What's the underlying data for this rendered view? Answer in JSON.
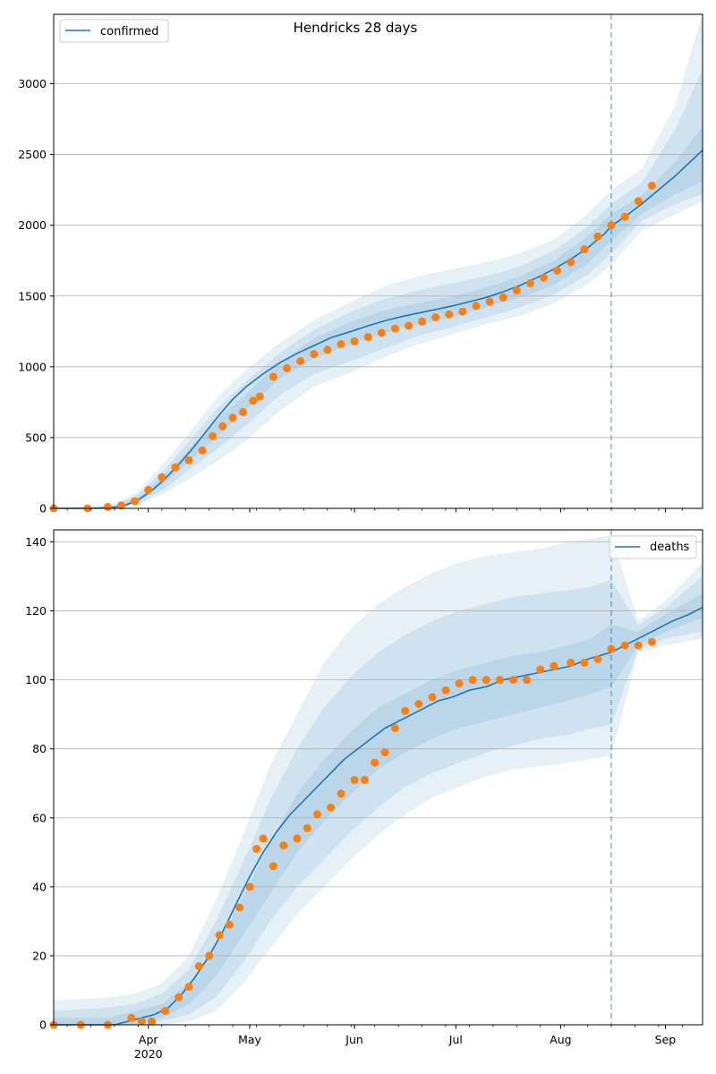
{
  "chart_data": [
    {
      "type": "line",
      "title": "Hendricks 28 days",
      "legend": {
        "entries": [
          "confirmed"
        ],
        "placement": "top-left"
      },
      "grid": "horizontal",
      "x_type": "date",
      "xlim": [
        "2020-03-04",
        "2020-09-12"
      ],
      "ylim": [
        0,
        3490
      ],
      "yticks": [
        0,
        500,
        1000,
        1500,
        2000,
        2500,
        3000
      ],
      "forecast_start": "2020-08-16",
      "series": [
        {
          "name": "confirmed",
          "kind": "model-median",
          "color": "#1f77b4",
          "x": [
            "2020-03-04",
            "2020-03-15",
            "2020-03-21",
            "2020-03-25",
            "2020-03-29",
            "2020-04-02",
            "2020-04-06",
            "2020-04-10",
            "2020-04-14",
            "2020-04-18",
            "2020-04-22",
            "2020-04-26",
            "2020-04-30",
            "2020-05-05",
            "2020-05-10",
            "2020-05-15",
            "2020-05-20",
            "2020-05-25",
            "2020-05-31",
            "2020-06-05",
            "2020-06-10",
            "2020-06-15",
            "2020-06-20",
            "2020-06-25",
            "2020-06-30",
            "2020-07-05",
            "2020-07-10",
            "2020-07-15",
            "2020-07-20",
            "2020-07-25",
            "2020-07-30",
            "2020-08-04",
            "2020-08-09",
            "2020-08-14",
            "2020-08-16",
            "2020-08-20",
            "2020-08-25",
            "2020-08-30",
            "2020-09-04",
            "2020-09-08",
            "2020-09-12"
          ],
          "y": [
            0,
            0,
            5,
            20,
            60,
            125,
            210,
            310,
            420,
            540,
            660,
            770,
            860,
            950,
            1030,
            1095,
            1150,
            1205,
            1250,
            1290,
            1325,
            1355,
            1380,
            1405,
            1430,
            1460,
            1490,
            1530,
            1575,
            1630,
            1690,
            1760,
            1840,
            1940,
            1995,
            2060,
            2150,
            2250,
            2350,
            2440,
            2530
          ]
        },
        {
          "name": "",
          "kind": "observed",
          "color": "#ff7f0e",
          "x": [
            "2020-03-04",
            "2020-03-14",
            "2020-03-20",
            "2020-03-24",
            "2020-03-28",
            "2020-04-01",
            "2020-04-05",
            "2020-04-09",
            "2020-04-13",
            "2020-04-17",
            "2020-04-20",
            "2020-04-23",
            "2020-04-26",
            "2020-04-29",
            "2020-05-02",
            "2020-05-04",
            "2020-05-08",
            "2020-05-12",
            "2020-05-16",
            "2020-05-20",
            "2020-05-24",
            "2020-05-28",
            "2020-06-01",
            "2020-06-05",
            "2020-06-09",
            "2020-06-13",
            "2020-06-17",
            "2020-06-21",
            "2020-06-25",
            "2020-06-29",
            "2020-07-03",
            "2020-07-07",
            "2020-07-11",
            "2020-07-15",
            "2020-07-19",
            "2020-07-23",
            "2020-07-27",
            "2020-07-31",
            "2020-08-04",
            "2020-08-08",
            "2020-08-12",
            "2020-08-16",
            "2020-08-20",
            "2020-08-24",
            "2020-08-28"
          ],
          "y": [
            0,
            0,
            10,
            20,
            50,
            130,
            220,
            290,
            340,
            410,
            510,
            580,
            640,
            680,
            760,
            790,
            930,
            990,
            1040,
            1090,
            1120,
            1160,
            1180,
            1210,
            1240,
            1270,
            1290,
            1320,
            1350,
            1370,
            1390,
            1430,
            1460,
            1490,
            1540,
            1590,
            1630,
            1680,
            1740,
            1830,
            1920,
            2000,
            2060,
            2170,
            2280
          ]
        }
      ],
      "bands": [
        {
          "x": [
            "2020-03-04",
            "2020-03-21",
            "2020-03-29",
            "2020-04-06",
            "2020-04-14",
            "2020-04-22",
            "2020-04-30",
            "2020-05-10",
            "2020-05-20",
            "2020-05-31",
            "2020-06-10",
            "2020-06-20",
            "2020-06-30",
            "2020-07-10",
            "2020-07-20",
            "2020-07-30",
            "2020-08-09",
            "2020-08-16",
            "2020-08-25",
            "2020-09-04",
            "2020-09-12"
          ],
          "lo": [
            0,
            0,
            20,
            110,
            220,
            340,
            480,
            690,
            860,
            960,
            1070,
            1160,
            1230,
            1300,
            1360,
            1450,
            1580,
            1720,
            1960,
            2080,
            2170
          ],
          "hi": [
            0,
            20,
            120,
            330,
            560,
            800,
            980,
            1170,
            1330,
            1460,
            1570,
            1640,
            1690,
            1740,
            1800,
            1900,
            2080,
            2250,
            2400,
            2850,
            3500
          ]
        },
        {
          "x": [
            "2020-03-04",
            "2020-03-21",
            "2020-03-29",
            "2020-04-06",
            "2020-04-14",
            "2020-04-22",
            "2020-04-30",
            "2020-05-10",
            "2020-05-20",
            "2020-05-31",
            "2020-06-10",
            "2020-06-20",
            "2020-06-30",
            "2020-07-10",
            "2020-07-20",
            "2020-07-30",
            "2020-08-09",
            "2020-08-16",
            "2020-08-25",
            "2020-09-04",
            "2020-09-12"
          ],
          "lo": [
            0,
            0,
            30,
            140,
            290,
            430,
            590,
            800,
            950,
            1040,
            1130,
            1220,
            1280,
            1350,
            1420,
            1510,
            1650,
            1800,
            2030,
            2150,
            2220
          ],
          "hi": [
            0,
            15,
            100,
            280,
            500,
            720,
            900,
            1100,
            1260,
            1390,
            1480,
            1540,
            1590,
            1640,
            1710,
            1820,
            1990,
            2150,
            2300,
            2680,
            3100
          ]
        },
        {
          "x": [
            "2020-03-04",
            "2020-03-21",
            "2020-03-29",
            "2020-04-06",
            "2020-04-14",
            "2020-04-22",
            "2020-04-30",
            "2020-05-10",
            "2020-05-20",
            "2020-05-31",
            "2020-06-10",
            "2020-06-20",
            "2020-06-30",
            "2020-07-10",
            "2020-07-20",
            "2020-07-30",
            "2020-08-09",
            "2020-08-16",
            "2020-08-25",
            "2020-09-04",
            "2020-09-12"
          ],
          "lo": [
            0,
            2,
            45,
            180,
            350,
            520,
            700,
            920,
            1060,
            1160,
            1240,
            1300,
            1350,
            1420,
            1490,
            1580,
            1730,
            1890,
            2080,
            2220,
            2310
          ],
          "hi": [
            0,
            8,
            80,
            240,
            440,
            640,
            810,
            1030,
            1200,
            1320,
            1400,
            1450,
            1500,
            1560,
            1640,
            1750,
            1920,
            2080,
            2210,
            2450,
            2700
          ]
        }
      ]
    },
    {
      "type": "line",
      "title": "",
      "legend": {
        "entries": [
          "deaths"
        ],
        "placement": "top-right"
      },
      "grid": "horizontal",
      "x_type": "date",
      "xlim": [
        "2020-03-04",
        "2020-09-12"
      ],
      "ylim": [
        0,
        143.5
      ],
      "yticks": [
        0,
        20,
        40,
        60,
        80,
        100,
        120,
        140
      ],
      "xticks": [
        {
          "date": "2020-04-01",
          "label": "Apr",
          "sub": "2020"
        },
        {
          "date": "2020-05-01",
          "label": "May"
        },
        {
          "date": "2020-06-01",
          "label": "Jun"
        },
        {
          "date": "2020-07-01",
          "label": "Jul"
        },
        {
          "date": "2020-08-01",
          "label": "Aug"
        },
        {
          "date": "2020-09-01",
          "label": "Sep"
        }
      ],
      "forecast_start": "2020-08-16",
      "series": [
        {
          "name": "deaths",
          "kind": "model-median",
          "color": "#1f77b4",
          "x": [
            "2020-03-04",
            "2020-03-22",
            "2020-03-26",
            "2020-03-30",
            "2020-04-03",
            "2020-04-07",
            "2020-04-11",
            "2020-04-15",
            "2020-04-19",
            "2020-04-23",
            "2020-04-27",
            "2020-05-01",
            "2020-05-05",
            "2020-05-09",
            "2020-05-13",
            "2020-05-17",
            "2020-05-21",
            "2020-05-25",
            "2020-05-29",
            "2020-06-02",
            "2020-06-06",
            "2020-06-10",
            "2020-06-14",
            "2020-06-18",
            "2020-06-22",
            "2020-06-26",
            "2020-06-30",
            "2020-07-05",
            "2020-07-10",
            "2020-07-15",
            "2020-07-20",
            "2020-07-25",
            "2020-07-30",
            "2020-08-04",
            "2020-08-09",
            "2020-08-16",
            "2020-08-22",
            "2020-08-28",
            "2020-09-03",
            "2020-09-08",
            "2020-09-12"
          ],
          "y": [
            0,
            0,
            1,
            2,
            3,
            5,
            9,
            14,
            20,
            27,
            35,
            43,
            50,
            56,
            61,
            65,
            69,
            73,
            77,
            80,
            83,
            86,
            88,
            90,
            92,
            94,
            95,
            97,
            98,
            100,
            101,
            102,
            103,
            104,
            106,
            108,
            111,
            114,
            117,
            119,
            121
          ]
        },
        {
          "name": "",
          "kind": "observed",
          "color": "#ff7f0e",
          "x": [
            "2020-03-04",
            "2020-03-12",
            "2020-03-20",
            "2020-03-27",
            "2020-03-30",
            "2020-04-02",
            "2020-04-06",
            "2020-04-10",
            "2020-04-13",
            "2020-04-16",
            "2020-04-19",
            "2020-04-22",
            "2020-04-25",
            "2020-04-28",
            "2020-05-01",
            "2020-05-03",
            "2020-05-05",
            "2020-05-08",
            "2020-05-11",
            "2020-05-15",
            "2020-05-18",
            "2020-05-21",
            "2020-05-25",
            "2020-05-28",
            "2020-06-01",
            "2020-06-04",
            "2020-06-07",
            "2020-06-10",
            "2020-06-13",
            "2020-06-16",
            "2020-06-20",
            "2020-06-24",
            "2020-06-28",
            "2020-07-02",
            "2020-07-06",
            "2020-07-10",
            "2020-07-14",
            "2020-07-18",
            "2020-07-22",
            "2020-07-26",
            "2020-07-30",
            "2020-08-04",
            "2020-08-08",
            "2020-08-12",
            "2020-08-16",
            "2020-08-20",
            "2020-08-24",
            "2020-08-28"
          ],
          "y": [
            0,
            0,
            0,
            2,
            1,
            1,
            4,
            8,
            11,
            17,
            20,
            26,
            29,
            34,
            40,
            51,
            54,
            46,
            52,
            54,
            57,
            61,
            63,
            67,
            71,
            71,
            76,
            79,
            86,
            91,
            93,
            95,
            97,
            99,
            100,
            100,
            100,
            100,
            100,
            103,
            104,
            105,
            105,
            106,
            109,
            110,
            110,
            111
          ]
        }
      ],
      "bands": [
        {
          "x": [
            "2020-03-04",
            "2020-03-20",
            "2020-03-28",
            "2020-04-05",
            "2020-04-13",
            "2020-04-21",
            "2020-04-29",
            "2020-05-07",
            "2020-05-15",
            "2020-05-23",
            "2020-05-31",
            "2020-06-08",
            "2020-06-16",
            "2020-06-24",
            "2020-07-02",
            "2020-07-10",
            "2020-07-18",
            "2020-07-26",
            "2020-08-03",
            "2020-08-10",
            "2020-08-16",
            "2020-08-24",
            "2020-09-01",
            "2020-09-12"
          ],
          "lo": [
            0,
            0,
            0,
            0,
            1,
            4,
            12,
            22,
            32,
            40,
            48,
            55,
            61,
            66,
            69,
            72,
            74,
            75,
            76,
            77,
            78,
            108,
            110,
            112
          ],
          "hi": [
            7,
            8,
            9,
            12,
            20,
            36,
            55,
            75,
            90,
            105,
            115,
            122,
            127,
            131,
            134,
            136,
            137,
            138,
            140,
            141,
            142,
            117,
            123,
            134
          ]
        },
        {
          "x": [
            "2020-03-04",
            "2020-03-20",
            "2020-03-28",
            "2020-04-05",
            "2020-04-13",
            "2020-04-21",
            "2020-04-29",
            "2020-05-07",
            "2020-05-15",
            "2020-05-23",
            "2020-05-31",
            "2020-06-08",
            "2020-06-16",
            "2020-06-24",
            "2020-07-02",
            "2020-07-10",
            "2020-07-18",
            "2020-07-26",
            "2020-08-03",
            "2020-08-10",
            "2020-08-16",
            "2020-08-24",
            "2020-09-01",
            "2020-09-12"
          ],
          "lo": [
            0,
            0,
            0,
            1,
            3,
            8,
            18,
            30,
            40,
            48,
            56,
            63,
            69,
            73,
            76,
            79,
            81,
            83,
            84,
            86,
            87,
            109,
            112,
            114
          ],
          "hi": [
            4,
            5,
            6,
            9,
            16,
            30,
            47,
            65,
            80,
            92,
            101,
            108,
            113,
            117,
            120,
            122,
            124,
            125,
            126,
            127,
            129,
            116,
            121,
            130
          ]
        },
        {
          "x": [
            "2020-03-04",
            "2020-03-20",
            "2020-03-28",
            "2020-04-05",
            "2020-04-13",
            "2020-04-21",
            "2020-04-29",
            "2020-05-07",
            "2020-05-15",
            "2020-05-23",
            "2020-05-31",
            "2020-06-08",
            "2020-06-16",
            "2020-06-24",
            "2020-07-02",
            "2020-07-10",
            "2020-07-18",
            "2020-07-26",
            "2020-08-03",
            "2020-08-10",
            "2020-08-16",
            "2020-08-24",
            "2020-09-01",
            "2020-09-12"
          ],
          "lo": [
            0,
            0,
            0,
            2,
            6,
            14,
            26,
            38,
            50,
            59,
            67,
            74,
            79,
            83,
            86,
            88,
            90,
            92,
            94,
            96,
            98,
            110,
            114,
            118
          ],
          "hi": [
            2,
            2,
            4,
            6,
            12,
            23,
            37,
            53,
            67,
            77,
            85,
            92,
            96,
            100,
            103,
            105,
            107,
            108,
            110,
            112,
            116,
            114,
            119,
            125
          ]
        }
      ]
    }
  ]
}
